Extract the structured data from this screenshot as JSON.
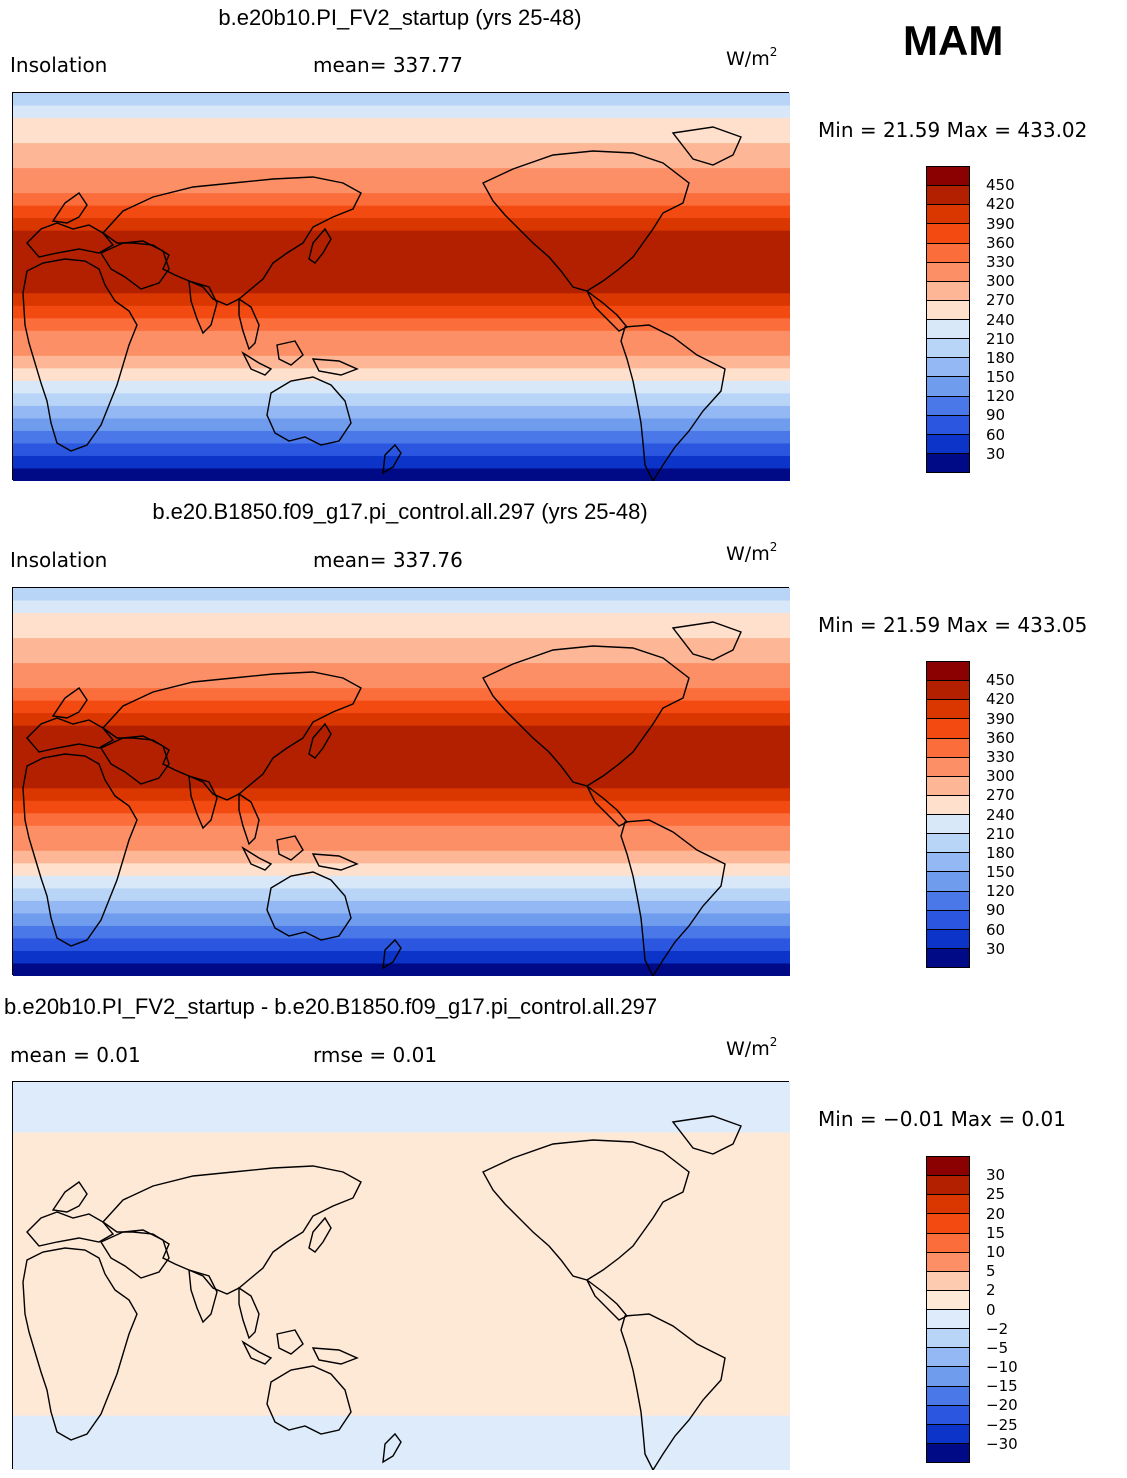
{
  "season": "MAM",
  "panels": [
    {
      "title": "b.e20b10.PI_FV2_startup (yrs 25-48)",
      "left_label": "Insolation",
      "center_label": "mean=  337.77",
      "units": "W/m",
      "units_sup": "2",
      "minmax": "Min =   21.59  Max =  433.02",
      "colorbar_labels": [
        "450",
        "420",
        "390",
        "360",
        "330",
        "300",
        "270",
        "240",
        "210",
        "180",
        "150",
        "120",
        "90",
        "60",
        "30"
      ],
      "colorbar_colors": [
        "#8b0000",
        "#b22000",
        "#d93600",
        "#f24a11",
        "#fb6d3b",
        "#fc8f65",
        "#fdb796",
        "#fee0cc",
        "#d8e8f8",
        "#b8d4f6",
        "#94b8f3",
        "#6f9ced",
        "#4a78e8",
        "#2a56e0",
        "#0d34c8",
        "#000a86"
      ],
      "field": "insolation"
    },
    {
      "title": "b.e20.B1850.f09_g17.pi_control.all.297 (yrs 25-48)",
      "left_label": "Insolation",
      "center_label": "mean=  337.76",
      "units": "W/m",
      "units_sup": "2",
      "minmax": "Min =   21.59  Max =  433.05",
      "colorbar_labels": [
        "450",
        "420",
        "390",
        "360",
        "330",
        "300",
        "270",
        "240",
        "210",
        "180",
        "150",
        "120",
        "90",
        "60",
        "30"
      ],
      "colorbar_colors": [
        "#8b0000",
        "#b22000",
        "#d93600",
        "#f24a11",
        "#fb6d3b",
        "#fc8f65",
        "#fdb796",
        "#fee0cc",
        "#d8e8f8",
        "#b8d4f6",
        "#94b8f3",
        "#6f9ced",
        "#4a78e8",
        "#2a56e0",
        "#0d34c8",
        "#000a86"
      ],
      "field": "insolation"
    },
    {
      "title": "b.e20b10.PI_FV2_startup - b.e20.B1850.f09_g17.pi_control.all.297",
      "left_label": "mean =    0.01",
      "center_label": "rmse =    0.01",
      "units": "W/m",
      "units_sup": "2",
      "minmax": "Min =  −0.01  Max =    0.01",
      "colorbar_labels": [
        "30",
        "25",
        "20",
        "15",
        "10",
        "5",
        "2",
        "0",
        "−2",
        "−5",
        "−10",
        "−15",
        "−20",
        "−25",
        "−30"
      ],
      "colorbar_colors": [
        "#8b0000",
        "#b22000",
        "#d93600",
        "#f24a11",
        "#fb6d3b",
        "#fc8f65",
        "#fdcbb0",
        "#fee8d6",
        "#ddebfa",
        "#b8d4f6",
        "#94b8f3",
        "#6f9ced",
        "#4a78e8",
        "#2a56e0",
        "#0d34c8",
        "#000a86"
      ],
      "field": "difference"
    }
  ]
}
